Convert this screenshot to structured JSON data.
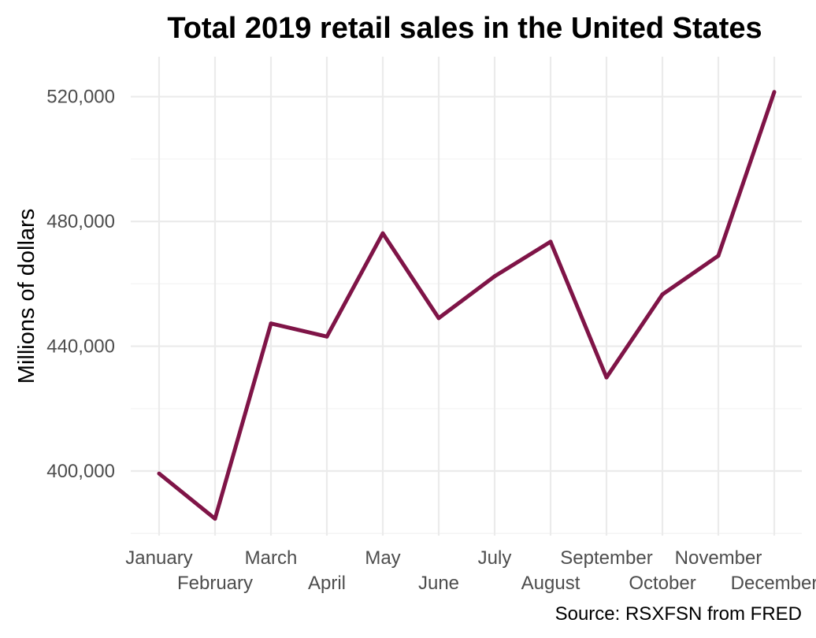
{
  "chart_data": {
    "type": "line",
    "title": "Total 2019 retail sales in the United States",
    "xlabel": "",
    "ylabel": "Millions of dollars",
    "caption": "Source: RSXFSN from FRED",
    "categories": [
      "January",
      "February",
      "March",
      "April",
      "May",
      "June",
      "July",
      "August",
      "September",
      "October",
      "November",
      "December"
    ],
    "series": [
      {
        "values": [
          399200,
          384700,
          447300,
          443100,
          476200,
          449000,
          462400,
          473500,
          430000,
          456600,
          469000,
          521500
        ],
        "color": "#7f1447"
      }
    ],
    "yticks": [
      400000,
      440000,
      480000,
      520000
    ],
    "ytick_labels": [
      "400,000",
      "440,000",
      "480,000",
      "520,000"
    ],
    "ylim": [
      379300,
      532800
    ],
    "grid": true,
    "legend": "none"
  }
}
